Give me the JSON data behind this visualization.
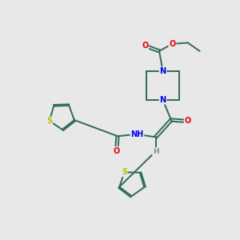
{
  "background_color": "#e8e8e8",
  "bond_color": "#2d6b5a",
  "atom_colors": {
    "N": "#0000ee",
    "O": "#ee0000",
    "S": "#bbbb00",
    "H": "#888899",
    "C": "#2d6b5a"
  },
  "figsize": [
    3.0,
    3.0
  ],
  "dpi": 100,
  "xlim": [
    0,
    10
  ],
  "ylim": [
    0,
    10
  ]
}
